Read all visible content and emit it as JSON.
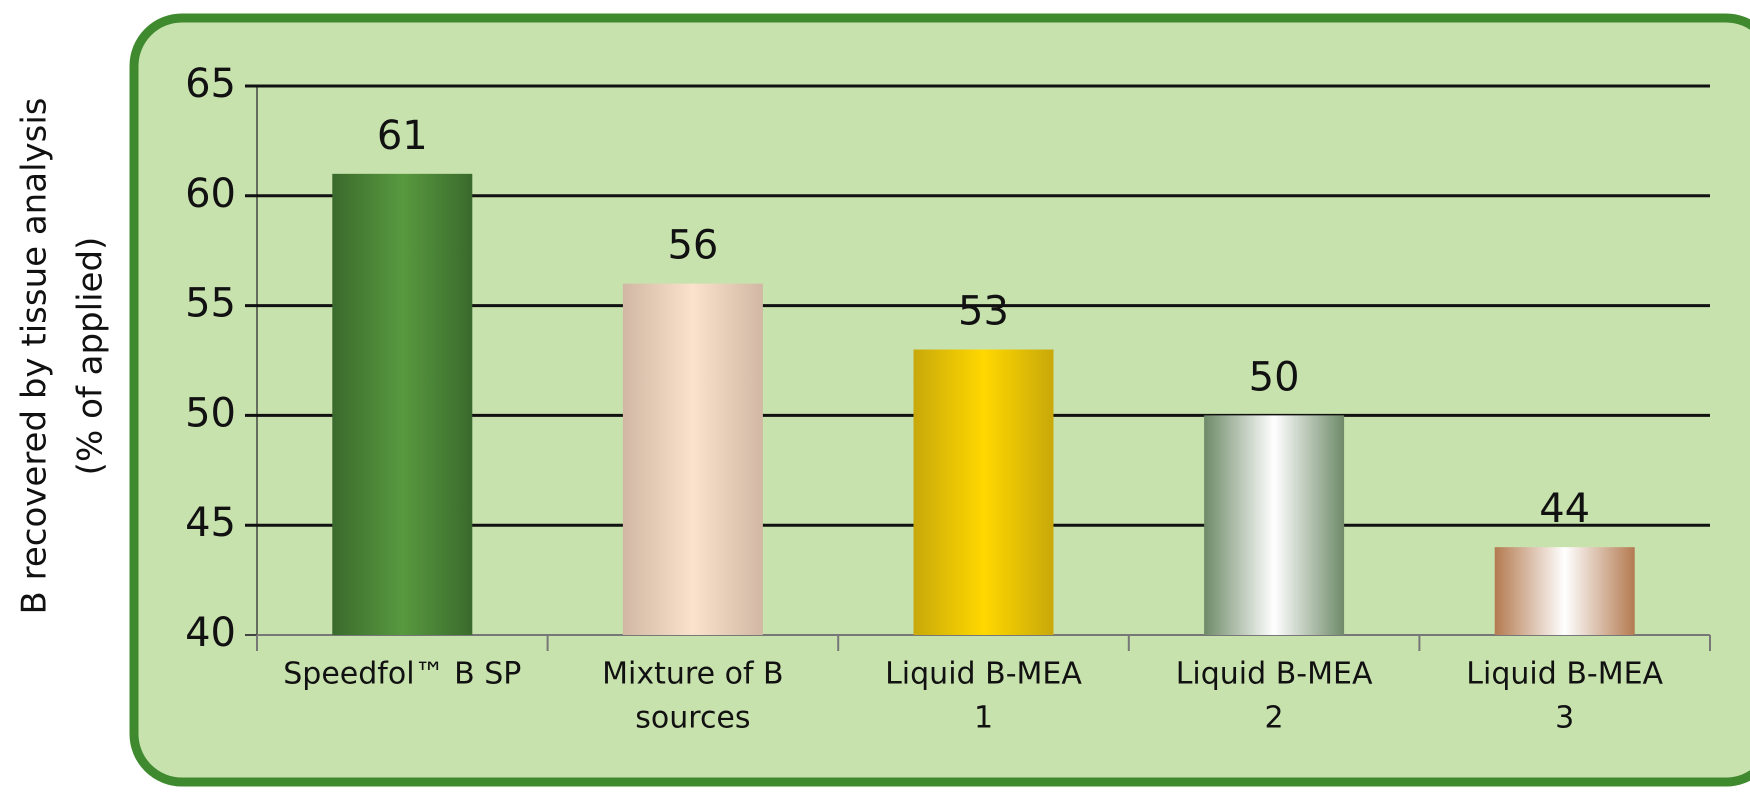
{
  "chart_data": {
    "type": "bar",
    "y_label": [
      "B recovered by tissue analysis",
      "(% of applied)"
    ],
    "categories": [
      [
        "Speedfol™ B SP"
      ],
      [
        "Mixture of B",
        "sources"
      ],
      [
        "Liquid B-MEA",
        "1"
      ],
      [
        "Liquid B-MEA",
        "2"
      ],
      [
        "Liquid B-MEA",
        "3"
      ]
    ],
    "values": [
      61,
      56,
      53,
      50,
      44
    ],
    "colors": [
      [
        "#3a6a2c",
        "#58993f"
      ],
      [
        "#d2b8a4",
        "#fae2cc"
      ],
      [
        "#c8a80a",
        "#ffd800"
      ],
      [
        "#6e8a68",
        "#ffffff"
      ],
      [
        "#b47a50",
        "#ffffff"
      ]
    ],
    "ylim": [
      40,
      65
    ],
    "yticks": [
      40,
      45,
      50,
      55,
      60,
      65
    ],
    "grid": true
  }
}
